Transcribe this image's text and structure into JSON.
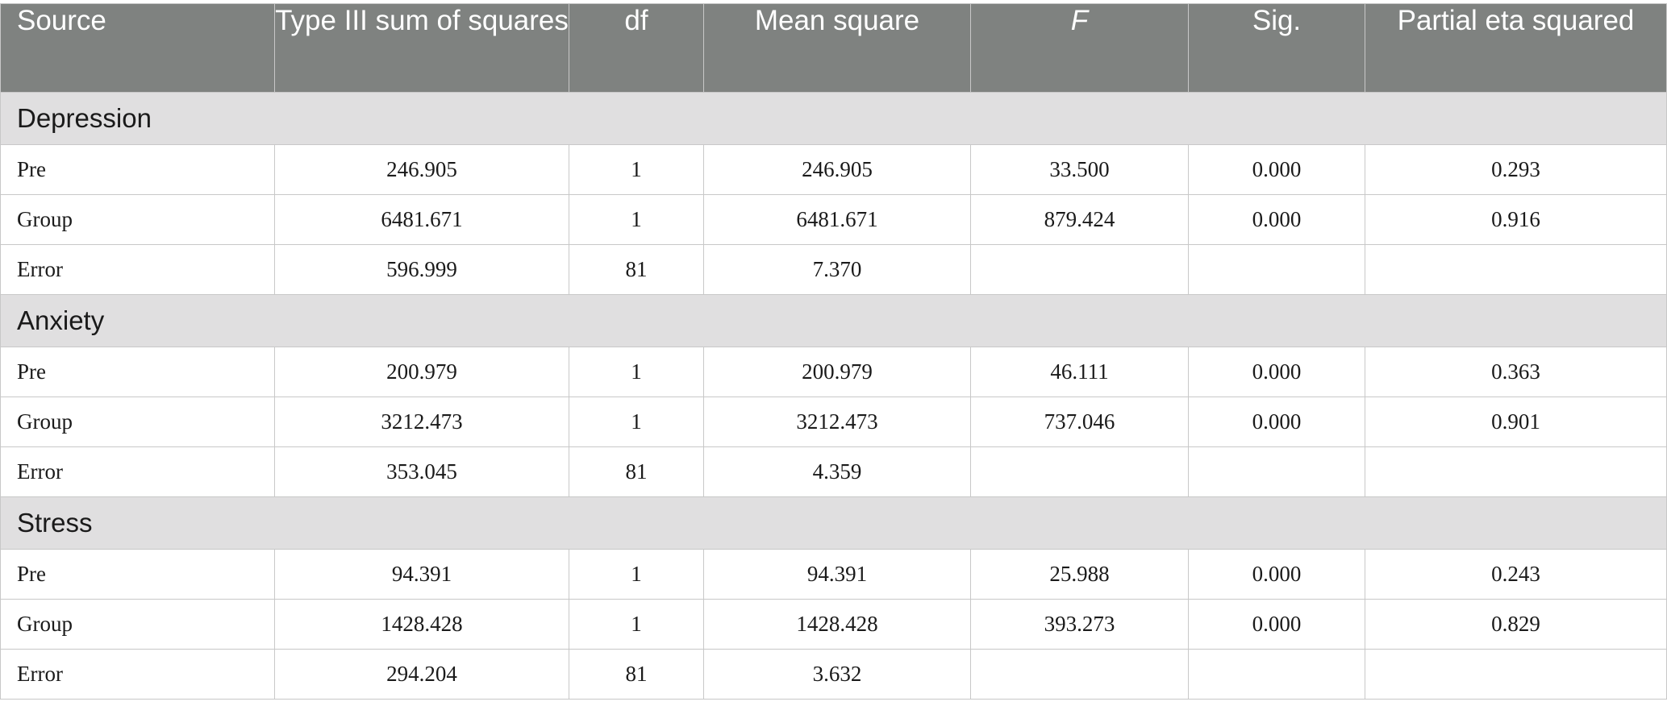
{
  "headers": [
    "Source",
    "Type III sum of squares",
    "df",
    "Mean square",
    "F",
    "Sig.",
    "Partial eta squared"
  ],
  "sections": [
    {
      "name": "Depression",
      "rows": [
        {
          "source": "Pre",
          "ss": "246.905",
          "df": "1",
          "ms": "246.905",
          "f": "33.500",
          "sig": "0.000",
          "eta": "0.293"
        },
        {
          "source": "Group",
          "ss": "6481.671",
          "df": "1",
          "ms": "6481.671",
          "f": "879.424",
          "sig": "0.000",
          "eta": "0.916"
        },
        {
          "source": "Error",
          "ss": "596.999",
          "df": "81",
          "ms": "7.370",
          "f": "",
          "sig": "",
          "eta": ""
        }
      ]
    },
    {
      "name": "Anxiety",
      "rows": [
        {
          "source": "Pre",
          "ss": "200.979",
          "df": "1",
          "ms": "200.979",
          "f": "46.111",
          "sig": "0.000",
          "eta": "0.363"
        },
        {
          "source": "Group",
          "ss": "3212.473",
          "df": "1",
          "ms": "3212.473",
          "f": "737.046",
          "sig": "0.000",
          "eta": "0.901"
        },
        {
          "source": "Error",
          "ss": "353.045",
          "df": "81",
          "ms": "4.359",
          "f": "",
          "sig": "",
          "eta": ""
        }
      ]
    },
    {
      "name": "Stress",
      "rows": [
        {
          "source": "Pre",
          "ss": "94.391",
          "df": "1",
          "ms": "94.391",
          "f": "25.988",
          "sig": "0.000",
          "eta": "0.243"
        },
        {
          "source": "Group",
          "ss": "1428.428",
          "df": "1",
          "ms": "1428.428",
          "f": "393.273",
          "sig": "0.000",
          "eta": "0.829"
        },
        {
          "source": "Error",
          "ss": "294.204",
          "df": "81",
          "ms": "3.632",
          "f": "",
          "sig": "",
          "eta": ""
        }
      ]
    }
  ]
}
